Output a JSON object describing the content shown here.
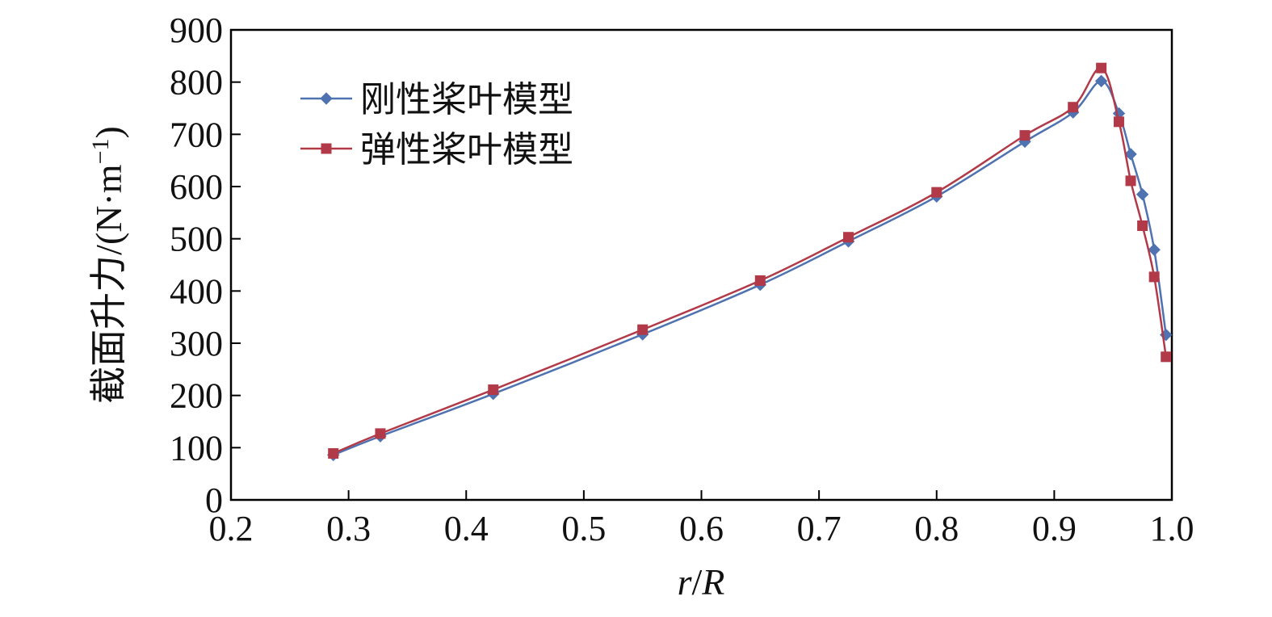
{
  "chart_data": {
    "type": "line",
    "title": "",
    "xlabel_italic": "r",
    "xlabel_slash": "/",
    "xlabel_italic2": "R",
    "ylabel_main": "截面升力/(N·m",
    "ylabel_sup": "−1",
    "ylabel_close": ")",
    "xlim": [
      0.2,
      1.0
    ],
    "ylim": [
      0,
      900
    ],
    "xticks": [
      "0.2",
      "0.3",
      "0.4",
      "0.5",
      "0.6",
      "0.7",
      "0.8",
      "0.9",
      "1.0"
    ],
    "yticks": [
      "0",
      "100",
      "200",
      "300",
      "400",
      "500",
      "600",
      "700",
      "800",
      "900"
    ],
    "legend_position": "top-left",
    "grid": false,
    "series": [
      {
        "name": "刚性桨叶模型",
        "color": "#4f72b0",
        "marker": "diamond",
        "x": [
          0.287,
          0.327,
          0.423,
          0.55,
          0.65,
          0.725,
          0.8,
          0.875,
          0.916,
          0.94,
          0.955,
          0.965,
          0.975,
          0.985,
          0.995
        ],
        "y": [
          86,
          122,
          203,
          317,
          412,
          495,
          581,
          686,
          742,
          802,
          740,
          662,
          585,
          479,
          316
        ]
      },
      {
        "name": "弹性桨叶模型",
        "color": "#b23a48",
        "marker": "square",
        "x": [
          0.287,
          0.327,
          0.423,
          0.55,
          0.65,
          0.725,
          0.8,
          0.875,
          0.916,
          0.94,
          0.955,
          0.965,
          0.975,
          0.985,
          0.995
        ],
        "y": [
          89,
          127,
          211,
          326,
          420,
          503,
          589,
          698,
          752,
          827,
          724,
          611,
          525,
          427,
          274
        ]
      }
    ]
  }
}
